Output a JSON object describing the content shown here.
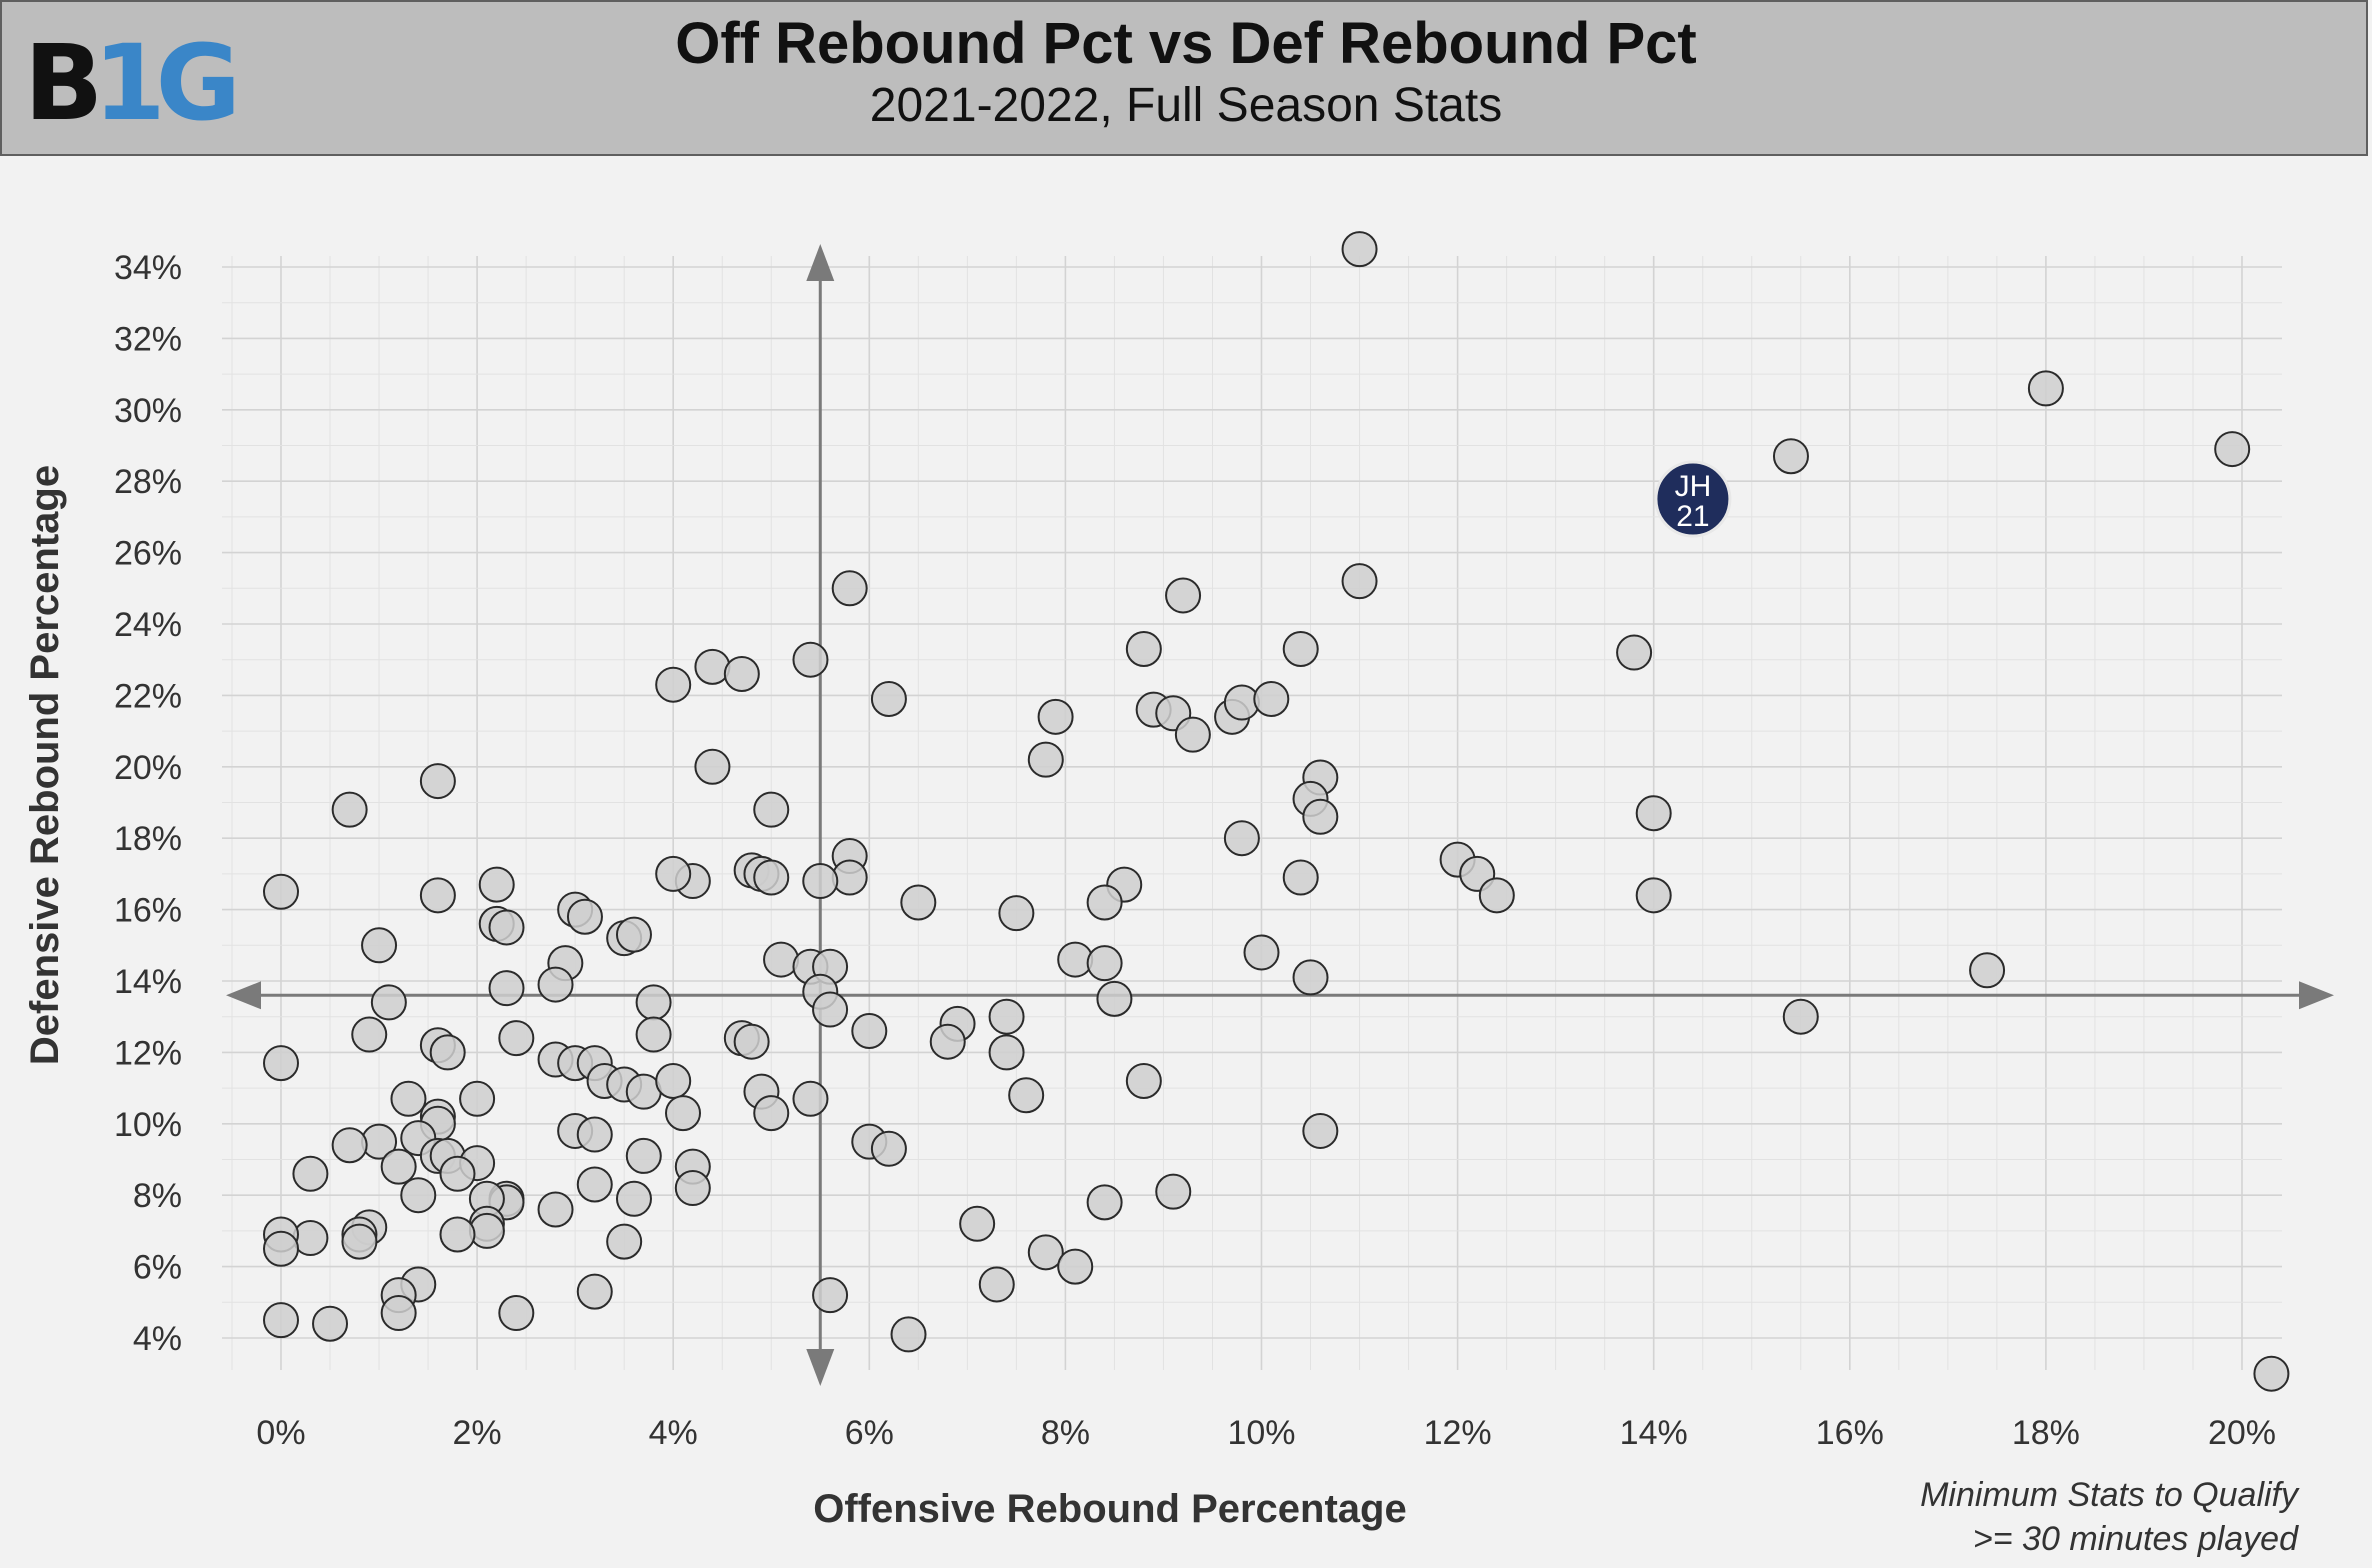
{
  "header": {
    "logo_text": "B1G",
    "title": "Off Rebound Pct vs Def Rebound Pct",
    "subtitle": "2021-2022, Full Season Stats"
  },
  "footnote": {
    "line1": "Minimum Stats to Qualify",
    "line2": ">= 30 minutes played"
  },
  "colors": {
    "header_bg": "#bdbdbd",
    "plot_bg": "#f2f2f2",
    "point_fill": "#cfcfcf",
    "highlight_fill": "#1f2d5c",
    "logo_black": "#111111",
    "logo_blue": "#3a86c8"
  },
  "chart_data": {
    "type": "scatter",
    "title": "Off Rebound Pct vs Def Rebound Pct",
    "subtitle": "2021-2022, Full Season Stats",
    "xlabel": "Offensive Rebound Percentage",
    "ylabel": "Defensive Rebound Percentage",
    "xlim": [
      -1,
      20.5
    ],
    "ylim": [
      3,
      35
    ],
    "xticks": [
      0,
      2,
      4,
      6,
      8,
      10,
      12,
      14,
      16,
      18,
      20
    ],
    "xtick_labels": [
      "0%",
      "2%",
      "4%",
      "6%",
      "8%",
      "10%",
      "12%",
      "14%",
      "16%",
      "18%",
      "20%"
    ],
    "yticks": [
      4,
      6,
      8,
      10,
      12,
      14,
      16,
      18,
      20,
      22,
      24,
      26,
      28,
      30,
      32,
      34
    ],
    "ytick_labels": [
      "4%",
      "6%",
      "8%",
      "10%",
      "12%",
      "14%",
      "16%",
      "18%",
      "20%",
      "22%",
      "24%",
      "26%",
      "28%",
      "30%",
      "32%",
      "34%"
    ],
    "grid": true,
    "reference_lines": {
      "x": 5.5,
      "y": 13.6
    },
    "highlight": {
      "label_line1": "JH",
      "label_line2": "21",
      "x": 14.4,
      "y": 27.5
    },
    "points": [
      [
        11.0,
        34.5
      ],
      [
        18.0,
        30.6
      ],
      [
        15.4,
        28.7
      ],
      [
        19.9,
        28.9
      ],
      [
        20.3,
        3.0
      ],
      [
        11.0,
        25.2
      ],
      [
        9.2,
        24.8
      ],
      [
        5.8,
        25.0
      ],
      [
        8.8,
        23.3
      ],
      [
        10.4,
        23.3
      ],
      [
        13.8,
        23.2
      ],
      [
        4.0,
        22.3
      ],
      [
        4.4,
        22.8
      ],
      [
        4.7,
        22.6
      ],
      [
        5.4,
        23.0
      ],
      [
        6.2,
        21.9
      ],
      [
        7.9,
        21.4
      ],
      [
        8.9,
        21.6
      ],
      [
        9.1,
        21.5
      ],
      [
        9.3,
        20.9
      ],
      [
        9.7,
        21.4
      ],
      [
        9.8,
        21.8
      ],
      [
        10.1,
        21.9
      ],
      [
        7.8,
        20.2
      ],
      [
        10.6,
        19.7
      ],
      [
        10.5,
        19.1
      ],
      [
        10.6,
        18.6
      ],
      [
        14.0,
        18.7
      ],
      [
        1.6,
        19.6
      ],
      [
        0.7,
        18.8
      ],
      [
        4.4,
        20.0
      ],
      [
        5.0,
        18.8
      ],
      [
        9.8,
        18.0
      ],
      [
        12.0,
        17.4
      ],
      [
        12.2,
        17.0
      ],
      [
        12.4,
        16.4
      ],
      [
        14.0,
        16.4
      ],
      [
        10.4,
        16.9
      ],
      [
        8.6,
        16.7
      ],
      [
        8.4,
        16.2
      ],
      [
        7.5,
        15.9
      ],
      [
        6.5,
        16.2
      ],
      [
        5.8,
        17.5
      ],
      [
        5.8,
        16.9
      ],
      [
        5.5,
        16.8
      ],
      [
        4.8,
        17.1
      ],
      [
        4.9,
        17.0
      ],
      [
        5.0,
        16.9
      ],
      [
        4.2,
        16.8
      ],
      [
        4.0,
        17.0
      ],
      [
        2.2,
        16.7
      ],
      [
        1.6,
        16.4
      ],
      [
        0.0,
        16.5
      ],
      [
        2.2,
        15.6
      ],
      [
        2.3,
        15.5
      ],
      [
        3.0,
        16.0
      ],
      [
        3.1,
        15.8
      ],
      [
        3.5,
        15.2
      ],
      [
        3.6,
        15.3
      ],
      [
        1.0,
        15.0
      ],
      [
        10.0,
        14.8
      ],
      [
        8.1,
        14.6
      ],
      [
        8.4,
        14.5
      ],
      [
        5.1,
        14.6
      ],
      [
        5.4,
        14.4
      ],
      [
        5.6,
        14.4
      ],
      [
        17.4,
        14.3
      ],
      [
        10.5,
        14.1
      ],
      [
        2.9,
        14.5
      ],
      [
        2.8,
        13.9
      ],
      [
        2.3,
        13.8
      ],
      [
        1.1,
        13.4
      ],
      [
        3.8,
        13.4
      ],
      [
        5.5,
        13.7
      ],
      [
        5.6,
        13.2
      ],
      [
        8.5,
        13.5
      ],
      [
        15.5,
        13.0
      ],
      [
        7.4,
        13.0
      ],
      [
        6.9,
        12.8
      ],
      [
        6.8,
        12.3
      ],
      [
        6.0,
        12.6
      ],
      [
        7.4,
        12.0
      ],
      [
        7.6,
        10.8
      ],
      [
        8.8,
        11.2
      ],
      [
        0.0,
        11.7
      ],
      [
        0.9,
        12.5
      ],
      [
        1.6,
        12.2
      ],
      [
        1.7,
        12.0
      ],
      [
        2.4,
        12.4
      ],
      [
        2.8,
        11.8
      ],
      [
        3.0,
        11.7
      ],
      [
        3.2,
        11.7
      ],
      [
        3.3,
        11.2
      ],
      [
        3.5,
        11.1
      ],
      [
        3.7,
        10.9
      ],
      [
        3.8,
        12.5
      ],
      [
        4.0,
        11.2
      ],
      [
        4.7,
        12.4
      ],
      [
        4.8,
        12.3
      ],
      [
        4.9,
        10.9
      ],
      [
        5.0,
        10.3
      ],
      [
        5.4,
        10.7
      ],
      [
        4.1,
        10.3
      ],
      [
        1.3,
        10.7
      ],
      [
        1.6,
        10.2
      ],
      [
        2.0,
        10.7
      ],
      [
        1.6,
        10.0
      ],
      [
        3.0,
        9.8
      ],
      [
        3.2,
        9.7
      ],
      [
        10.6,
        9.8
      ],
      [
        6.0,
        9.5
      ],
      [
        6.2,
        9.3
      ],
      [
        1.4,
        9.6
      ],
      [
        1.0,
        9.5
      ],
      [
        0.7,
        9.4
      ],
      [
        1.6,
        9.1
      ],
      [
        1.7,
        9.1
      ],
      [
        2.0,
        8.9
      ],
      [
        1.2,
        8.8
      ],
      [
        1.8,
        8.6
      ],
      [
        0.3,
        8.6
      ],
      [
        3.7,
        9.1
      ],
      [
        4.2,
        8.8
      ],
      [
        4.2,
        8.2
      ],
      [
        3.2,
        8.3
      ],
      [
        3.6,
        7.9
      ],
      [
        2.3,
        7.9
      ],
      [
        2.3,
        7.8
      ],
      [
        2.1,
        7.9
      ],
      [
        1.4,
        8.0
      ],
      [
        9.1,
        8.1
      ],
      [
        8.4,
        7.8
      ],
      [
        7.1,
        7.2
      ],
      [
        2.8,
        7.6
      ],
      [
        2.1,
        7.2
      ],
      [
        2.1,
        7.0
      ],
      [
        1.8,
        6.9
      ],
      [
        0.9,
        7.1
      ],
      [
        0.8,
        6.9
      ],
      [
        0.8,
        6.7
      ],
      [
        0.3,
        6.8
      ],
      [
        0.0,
        6.9
      ],
      [
        0.0,
        6.5
      ],
      [
        3.5,
        6.7
      ],
      [
        7.8,
        6.4
      ],
      [
        8.1,
        6.0
      ],
      [
        7.3,
        5.5
      ],
      [
        1.4,
        5.5
      ],
      [
        1.2,
        5.2
      ],
      [
        1.2,
        4.7
      ],
      [
        3.2,
        5.3
      ],
      [
        2.4,
        4.7
      ],
      [
        5.6,
        5.2
      ],
      [
        0.0,
        4.5
      ],
      [
        0.5,
        4.4
      ],
      [
        6.4,
        4.1
      ]
    ]
  }
}
